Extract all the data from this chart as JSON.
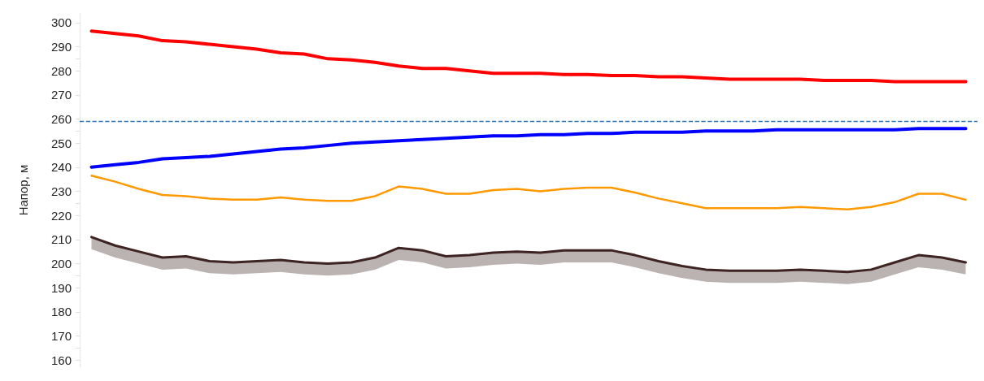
{
  "chart_data": {
    "type": "line",
    "ylabel": "Напор, м",
    "categories": [
      null,
      null,
      null,
      null,
      null,
      null,
      null,
      null,
      null,
      null,
      null,
      null,
      null,
      null,
      null,
      null,
      null,
      null,
      null,
      null,
      null,
      null,
      null,
      null,
      null,
      null,
      null,
      null,
      null,
      null,
      null,
      null,
      null,
      null,
      null,
      null,
      null,
      null
    ],
    "ylim": [
      157,
      304
    ],
    "yticks": [
      160,
      170,
      180,
      190,
      200,
      210,
      220,
      230,
      240,
      250,
      260,
      270,
      280,
      290,
      300
    ],
    "grid": false,
    "marker": "none",
    "line_style": "solid",
    "ref_lines": [
      {
        "axis": "y",
        "value": 259,
        "color": "#2e75b6",
        "line_style": "dashed"
      }
    ],
    "series": [
      {
        "color": "#ff0000",
        "values": [
          296.5,
          295.5,
          294.5,
          292.5,
          292,
          291,
          290,
          289,
          287.5,
          287,
          285,
          284.5,
          283.5,
          282,
          281,
          281,
          280,
          279,
          279,
          279,
          278.5,
          278.5,
          278,
          278,
          277.5,
          277.5,
          277,
          276.5,
          276.5,
          276.5,
          276.5,
          276,
          276,
          276,
          275.5,
          275.5,
          275.5,
          275.5
        ]
      },
      {
        "color": "#0000ff",
        "values": [
          240,
          241,
          242,
          243.5,
          244,
          244.5,
          245.5,
          246.5,
          247.5,
          248,
          249,
          250,
          250.5,
          251,
          251.5,
          252,
          252.5,
          253,
          253,
          253.5,
          253.5,
          254,
          254,
          254.5,
          254.5,
          254.5,
          255,
          255,
          255,
          255.5,
          255.5,
          255.5,
          255.5,
          255.5,
          255.5,
          256,
          256,
          256
        ]
      },
      {
        "color": "#ff9900",
        "values": [
          236.5,
          234,
          231,
          228.5,
          228,
          227,
          226.5,
          226.5,
          227.5,
          226.5,
          226,
          226,
          228,
          232,
          231,
          229,
          229,
          230.5,
          231,
          230,
          231,
          231.5,
          231.5,
          229.5,
          227,
          225,
          223,
          223,
          223,
          223,
          223.5,
          223,
          222.5,
          223.5,
          225.5,
          229,
          229,
          226.5
        ]
      },
      {
        "color": "#3d2321",
        "values": [
          211,
          207.5,
          205,
          202.5,
          203,
          201,
          200.5,
          201,
          201.5,
          200.5,
          200,
          200.5,
          202.5,
          206.5,
          205.5,
          203,
          203.5,
          204.5,
          205,
          204.5,
          205.5,
          205.5,
          205.5,
          203.5,
          201,
          199,
          197.5,
          197,
          197,
          197,
          197.5,
          197,
          196.5,
          197.5,
          200.5,
          203.5,
          202.5,
          200.5
        ],
        "lower": [
          206,
          202.5,
          200,
          197.5,
          198,
          196,
          195.5,
          196,
          196.5,
          195.5,
          195,
          195.5,
          197.5,
          201.5,
          200.5,
          198,
          198.5,
          199.5,
          200,
          199.5,
          200.5,
          200.5,
          200.5,
          198.5,
          196,
          194,
          192.5,
          192,
          192,
          192,
          192.5,
          192,
          191.5,
          192.5,
          195.5,
          198.5,
          197.5,
          195.5
        ],
        "upper": [
          211,
          207.5,
          205,
          202.5,
          203,
          201,
          200.5,
          201,
          201.5,
          200.5,
          200,
          200.5,
          202.5,
          206.5,
          205.5,
          203,
          203.5,
          204.5,
          205,
          204.5,
          205.5,
          205.5,
          205.5,
          203.5,
          201,
          199,
          197.5,
          197,
          197,
          197,
          197.5,
          197,
          196.5,
          197.5,
          200.5,
          203.5,
          202.5,
          200.5
        ]
      }
    ]
  }
}
